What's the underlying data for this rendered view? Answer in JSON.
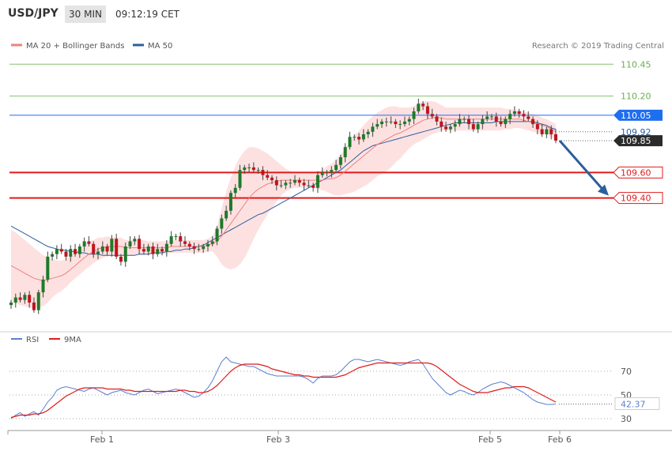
{
  "header": {
    "symbol": "USD/JPY",
    "timeframe": "30 MIN",
    "time": "09:12:19 CET"
  },
  "main_legend": {
    "bb_label": "MA 20 + Bollinger Bands",
    "ma50_label": "MA 50",
    "credit": "Research © 2019 Trading Central"
  },
  "rsi_legend": {
    "rsi_label": "RSI",
    "ma_label": "9MA"
  },
  "colors": {
    "up": "#1e7a28",
    "down": "#c0141c",
    "ma20": "#f08080",
    "ma50": "#2e5f9e",
    "band": "#fde1e1",
    "resistance": "#6ab04c",
    "support": "#e01b1b",
    "pivot": "#1e6ef0",
    "price_tag": "#2b2b2b",
    "arrow": "#2b5f9b",
    "rsi": "#5b7fd1",
    "rsi_ma": "#e01b1b"
  },
  "chart_data": {
    "type": "candlestick",
    "x_labels": [
      "Feb 1",
      "Feb 3",
      "Feb 5",
      "Feb 6"
    ],
    "price_range": [
      108.4,
      110.52
    ],
    "levels": [
      {
        "value": 110.45,
        "label": "110.45",
        "kind": "resistance"
      },
      {
        "value": 110.2,
        "label": "110.20",
        "kind": "resistance"
      },
      {
        "value": 110.05,
        "label": "110.05",
        "kind": "pivot"
      },
      {
        "value": 109.6,
        "label": "109.60",
        "kind": "support"
      },
      {
        "value": 109.4,
        "label": "109.40",
        "kind": "support"
      }
    ],
    "markers": [
      {
        "value": 109.92,
        "label": "109.92",
        "kind": "ma20"
      },
      {
        "value": 109.85,
        "label": "109.85",
        "kind": "last_price"
      }
    ],
    "forecast": {
      "from": 109.85,
      "to": 109.4
    },
    "closes": [
      108.58,
      108.62,
      108.6,
      108.64,
      108.58,
      108.52,
      108.66,
      108.76,
      108.94,
      108.96,
      109.0,
      108.98,
      108.94,
      109.0,
      108.96,
      109.02,
      109.06,
      109.04,
      108.96,
      108.98,
      109.02,
      108.98,
      109.08,
      108.94,
      108.9,
      109.02,
      109.06,
      109.08,
      109.0,
      108.98,
      109.02,
      108.96,
      109.0,
      108.98,
      109.04,
      109.1,
      109.1,
      109.06,
      109.04,
      109.02,
      109.0,
      109.0,
      109.02,
      109.04,
      109.06,
      109.16,
      109.24,
      109.3,
      109.44,
      109.48,
      109.62,
      109.64,
      109.64,
      109.62,
      109.62,
      109.58,
      109.56,
      109.54,
      109.5,
      109.5,
      109.52,
      109.52,
      109.54,
      109.52,
      109.5,
      109.5,
      109.48,
      109.58,
      109.6,
      109.6,
      109.62,
      109.66,
      109.72,
      109.8,
      109.88,
      109.88,
      109.86,
      109.9,
      109.92,
      109.96,
      109.98,
      110.0,
      110.0,
      110.0,
      109.98,
      109.98,
      110.0,
      110.02,
      110.08,
      110.14,
      110.12,
      110.06,
      110.04,
      110.0,
      109.96,
      109.94,
      109.96,
      109.98,
      110.02,
      110.02,
      109.98,
      109.94,
      109.98,
      110.02,
      110.04,
      110.04,
      110.0,
      109.98,
      110.02,
      110.06,
      110.08,
      110.06,
      110.04,
      110.02,
      109.98,
      109.94,
      109.9,
      109.94,
      109.9,
      109.85
    ],
    "opens": [
      108.56,
      108.58,
      108.62,
      108.6,
      108.64,
      108.58,
      108.52,
      108.66,
      108.76,
      108.94,
      108.96,
      109.0,
      108.98,
      108.94,
      109.0,
      108.96,
      109.02,
      109.06,
      109.04,
      108.96,
      108.98,
      109.02,
      108.98,
      109.08,
      108.94,
      108.9,
      109.02,
      109.06,
      109.08,
      109.0,
      108.98,
      109.02,
      108.96,
      109.0,
      108.98,
      109.04,
      109.1,
      109.1,
      109.06,
      109.04,
      109.02,
      109.0,
      109.0,
      109.02,
      109.04,
      109.06,
      109.16,
      109.24,
      109.3,
      109.44,
      109.48,
      109.62,
      109.64,
      109.64,
      109.62,
      109.62,
      109.58,
      109.56,
      109.54,
      109.5,
      109.5,
      109.52,
      109.52,
      109.54,
      109.52,
      109.5,
      109.5,
      109.48,
      109.58,
      109.6,
      109.6,
      109.62,
      109.66,
      109.72,
      109.8,
      109.88,
      109.88,
      109.86,
      109.9,
      109.92,
      109.96,
      109.98,
      110.0,
      110.0,
      110.0,
      109.98,
      109.98,
      110.0,
      110.02,
      110.08,
      110.14,
      110.12,
      110.06,
      110.04,
      110.0,
      109.96,
      109.94,
      109.96,
      109.98,
      110.02,
      110.02,
      109.98,
      109.94,
      109.98,
      110.02,
      110.04,
      110.04,
      110.0,
      109.98,
      110.02,
      110.06,
      110.08,
      110.06,
      110.04,
      110.02,
      109.98,
      109.94,
      109.9,
      109.94,
      109.9
    ],
    "ma20": [
      108.87,
      108.85,
      108.83,
      108.81,
      108.79,
      108.77,
      108.76,
      108.75,
      108.76,
      108.77,
      108.78,
      108.79,
      108.81,
      108.84,
      108.87,
      108.9,
      108.93,
      108.96,
      108.98,
      109.0,
      109.01,
      109.02,
      109.02,
      109.02,
      109.02,
      109.01,
      109.01,
      109.01,
      109.01,
      109.01,
      109.01,
      109.01,
      109.01,
      109.01,
      109.01,
      109.02,
      109.02,
      109.02,
      109.02,
      109.02,
      109.02,
      109.02,
      109.02,
      109.03,
      109.04,
      109.06,
      109.1,
      109.15,
      109.2,
      109.25,
      109.3,
      109.35,
      109.4,
      109.44,
      109.47,
      109.49,
      109.51,
      109.52,
      109.53,
      109.54,
      109.54,
      109.54,
      109.54,
      109.54,
      109.54,
      109.54,
      109.54,
      109.54,
      109.54,
      109.55,
      109.55,
      109.56,
      109.58,
      109.61,
      109.64,
      109.67,
      109.7,
      109.73,
      109.76,
      109.79,
      109.82,
      109.84,
      109.86,
      109.88,
      109.9,
      109.91,
      109.93,
      109.95,
      109.97,
      109.99,
      110.01,
      110.02,
      110.03,
      110.03,
      110.03,
      110.02,
      110.02,
      110.02,
      110.02,
      110.02,
      110.02,
      110.02,
      110.02,
      110.02,
      110.02,
      110.02,
      110.02,
      110.02,
      110.02,
      110.02,
      110.02,
      110.02,
      110.01,
      110.0,
      109.99,
      109.98,
      109.97,
      109.96,
      109.94,
      109.92
    ],
    "ma50": [
      109.18,
      109.16,
      109.14,
      109.12,
      109.1,
      109.08,
      109.06,
      109.04,
      109.02,
      109.01,
      109.0,
      108.99,
      108.99,
      108.98,
      108.98,
      108.97,
      108.97,
      108.96,
      108.96,
      108.96,
      108.95,
      108.95,
      108.95,
      108.95,
      108.95,
      108.95,
      108.95,
      108.95,
      108.96,
      108.96,
      108.96,
      108.97,
      108.97,
      108.97,
      108.98,
      108.98,
      108.99,
      108.99,
      109.0,
      109.0,
      109.01,
      109.02,
      109.03,
      109.05,
      109.07,
      109.09,
      109.11,
      109.13,
      109.15,
      109.17,
      109.19,
      109.21,
      109.23,
      109.25,
      109.27,
      109.28,
      109.3,
      109.32,
      109.34,
      109.36,
      109.38,
      109.4,
      109.42,
      109.44,
      109.46,
      109.48,
      109.5,
      109.52,
      109.54,
      109.56,
      109.58,
      109.6,
      109.62,
      109.65,
      109.68,
      109.71,
      109.74,
      109.77,
      109.79,
      109.81,
      109.82,
      109.83,
      109.84,
      109.85,
      109.86,
      109.87,
      109.88,
      109.89,
      109.9,
      109.91,
      109.92,
      109.93,
      109.94,
      109.95,
      109.96,
      109.97,
      109.98,
      109.99,
      109.99,
      109.99,
      109.99,
      109.99,
      109.99,
      109.99,
      109.99,
      109.99,
      110.0,
      110.0,
      110.0,
      110.0,
      110.0,
      110.0,
      110.0,
      110.0,
      110.0,
      109.99,
      109.98,
      109.97,
      109.95,
      109.94
    ],
    "bb_width": [
      0.28,
      0.28,
      0.27,
      0.26,
      0.25,
      0.24,
      0.22,
      0.2,
      0.18,
      0.15,
      0.13,
      0.12,
      0.11,
      0.1,
      0.1,
      0.1,
      0.1,
      0.1,
      0.09,
      0.09,
      0.08,
      0.08,
      0.07,
      0.07,
      0.07,
      0.06,
      0.06,
      0.06,
      0.06,
      0.06,
      0.05,
      0.05,
      0.05,
      0.05,
      0.05,
      0.05,
      0.05,
      0.05,
      0.05,
      0.05,
      0.05,
      0.05,
      0.05,
      0.05,
      0.06,
      0.12,
      0.22,
      0.3,
      0.36,
      0.4,
      0.42,
      0.42,
      0.4,
      0.36,
      0.32,
      0.28,
      0.24,
      0.2,
      0.16,
      0.12,
      0.09,
      0.07,
      0.06,
      0.06,
      0.06,
      0.06,
      0.06,
      0.07,
      0.08,
      0.1,
      0.12,
      0.14,
      0.16,
      0.18,
      0.2,
      0.22,
      0.23,
      0.24,
      0.25,
      0.25,
      0.25,
      0.25,
      0.25,
      0.24,
      0.22,
      0.2,
      0.18,
      0.16,
      0.15,
      0.15,
      0.15,
      0.14,
      0.13,
      0.12,
      0.1,
      0.09,
      0.09,
      0.09,
      0.09,
      0.09,
      0.09,
      0.09,
      0.09,
      0.09,
      0.09,
      0.09,
      0.09,
      0.09,
      0.08,
      0.08,
      0.07,
      0.07,
      0.07,
      0.07,
      0.07,
      0.07,
      0.06,
      0.06,
      0.06,
      0.06
    ],
    "rsi": {
      "ticks": [
        70,
        50,
        30
      ],
      "range": [
        20,
        90
      ],
      "last": 42.37,
      "last_label": "42.37",
      "values": [
        30,
        33,
        35,
        32,
        34,
        36,
        33,
        38,
        44,
        48,
        54,
        56,
        57,
        56,
        55,
        54,
        53,
        55,
        56,
        54,
        52,
        50,
        52,
        53,
        54,
        52,
        51,
        50,
        52,
        54,
        55,
        53,
        51,
        52,
        53,
        54,
        55,
        54,
        52,
        50,
        48,
        49,
        52,
        56,
        62,
        70,
        78,
        82,
        78,
        77,
        76,
        75,
        74,
        74,
        72,
        70,
        68,
        67,
        66,
        66,
        66,
        66,
        66,
        66,
        65,
        63,
        60,
        64,
        66,
        66,
        66,
        67,
        70,
        74,
        78,
        80,
        80,
        79,
        78,
        79,
        80,
        79,
        78,
        77,
        76,
        75,
        76,
        78,
        79,
        80,
        76,
        70,
        64,
        60,
        56,
        52,
        50,
        52,
        54,
        53,
        51,
        50,
        52,
        55,
        57,
        59,
        60,
        61,
        60,
        58,
        56,
        54,
        52,
        49,
        46,
        44,
        43,
        42,
        42,
        42.37
      ],
      "ma9": [
        31,
        32,
        33,
        33,
        33,
        34,
        34,
        35,
        37,
        40,
        43,
        46,
        49,
        51,
        53,
        55,
        56,
        56,
        56,
        56,
        56,
        55,
        55,
        55,
        55,
        54,
        54,
        53,
        53,
        53,
        53,
        53,
        53,
        53,
        53,
        53,
        53,
        54,
        54,
        53,
        53,
        52,
        52,
        53,
        55,
        58,
        62,
        66,
        70,
        73,
        75,
        76,
        76,
        76,
        76,
        75,
        74,
        72,
        71,
        70,
        69,
        68,
        67,
        67,
        66,
        66,
        65,
        65,
        65,
        65,
        65,
        65,
        66,
        67,
        69,
        71,
        73,
        74,
        75,
        76,
        77,
        77,
        77,
        77,
        77,
        77,
        77,
        77,
        77,
        77,
        77,
        77,
        76,
        74,
        71,
        68,
        65,
        62,
        59,
        57,
        55,
        53,
        52,
        52,
        52,
        53,
        54,
        55,
        56,
        56,
        57,
        57,
        57,
        56,
        54,
        52,
        50,
        48,
        46,
        44
      ]
    }
  }
}
